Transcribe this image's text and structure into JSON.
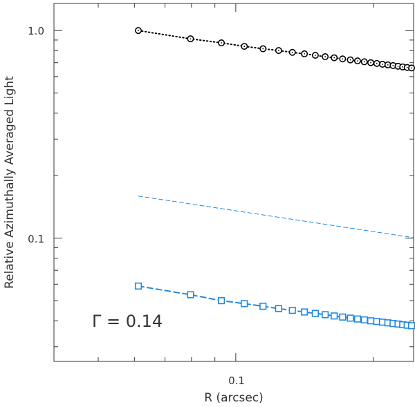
{
  "chart_data": {
    "type": "line",
    "xscale": "log",
    "yscale": "log",
    "xlim": [
      0.04,
      0.245
    ],
    "ylim": [
      0.0255,
      1.35
    ],
    "xlabel": "R (arcsec)",
    "ylabel": "Relative Azimuthally Averaged Light",
    "xticks": [
      {
        "value": 0.1,
        "label": "0.1"
      }
    ],
    "yticks": [
      {
        "value": 1.0,
        "label": "1.0"
      },
      {
        "value": 0.1,
        "label": "0.1"
      }
    ],
    "annotation": "Γ = 0.14",
    "colors": {
      "black_series": "#000000",
      "blue_series": "#1e88e5",
      "axis": "#333333"
    },
    "series": [
      {
        "name": "black-circles",
        "color": "#000000",
        "marker": "circle",
        "line_style": "dotted",
        "x": [
          0.0612,
          0.0796,
          0.093,
          0.1044,
          0.1147,
          0.1241,
          0.133,
          0.1413,
          0.1493,
          0.1569,
          0.1642,
          0.1713,
          0.1781,
          0.1847,
          0.1911,
          0.1974,
          0.2035,
          0.2094,
          0.2152,
          0.2209,
          0.2265,
          0.2319,
          0.2372,
          0.2425
        ],
        "values": [
          1.0,
          0.912,
          0.872,
          0.839,
          0.817,
          0.801,
          0.785,
          0.772,
          0.76,
          0.748,
          0.739,
          0.73,
          0.722,
          0.714,
          0.707,
          0.7,
          0.694,
          0.688,
          0.683,
          0.678,
          0.673,
          0.668,
          0.664,
          0.66
        ]
      },
      {
        "name": "blue-squares",
        "color": "#1e88e5",
        "marker": "square",
        "line_style": "dashed",
        "x": [
          0.0612,
          0.0796,
          0.093,
          0.1044,
          0.1147,
          0.1241,
          0.133,
          0.1413,
          0.1493,
          0.1569,
          0.1642,
          0.1713,
          0.1781,
          0.1847,
          0.1911,
          0.1974,
          0.2035,
          0.2094,
          0.2152,
          0.2209,
          0.2265,
          0.2319,
          0.2372,
          0.2425
        ],
        "values": [
          0.0588,
          0.0534,
          0.05,
          0.0484,
          0.047,
          0.0458,
          0.0449,
          0.0441,
          0.0434,
          0.0428,
          0.0422,
          0.0417,
          0.0412,
          0.0408,
          0.0404,
          0.04,
          0.0397,
          0.0394,
          0.0391,
          0.0388,
          0.0386,
          0.0383,
          0.0381,
          0.0379
        ]
      },
      {
        "name": "blue-reference-line",
        "color": "#1e88e5",
        "marker": "none",
        "line_style": "dashed-thin",
        "x": [
          0.0612,
          0.245
        ],
        "values": [
          0.1595,
          0.1005
        ]
      }
    ]
  }
}
